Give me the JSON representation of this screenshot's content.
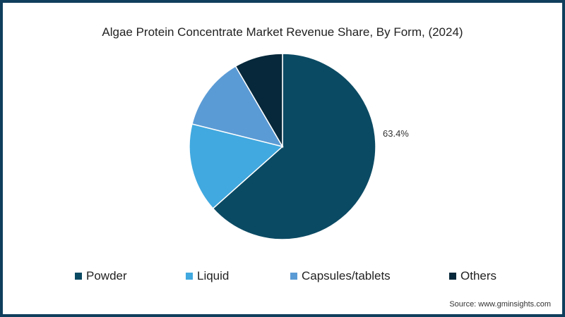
{
  "chart_data": {
    "type": "pie",
    "title": "Algae Protein Concentrate Market Revenue Share, By Form, (2024)",
    "categories": [
      "Powder",
      "Liquid",
      "Capsules/tablets",
      "Others"
    ],
    "values": [
      63.4,
      15.5,
      12.7,
      8.4
    ],
    "colors": [
      "#0b4a63",
      "#41a9df",
      "#5b9bd5",
      "#06283a"
    ],
    "data_labels": [
      {
        "category": "Powder",
        "text": "63.4%"
      }
    ],
    "legend_position": "bottom",
    "start_angle": "12 o'clock, clockwise"
  },
  "title": "Algae Protein Concentrate Market Revenue Share, By Form, (2024)",
  "label_powder": "63.4%",
  "legend": [
    {
      "label": "Powder",
      "color": "#0b4a63"
    },
    {
      "label": "Liquid",
      "color": "#41a9df"
    },
    {
      "label": "Capsules/tablets",
      "color": "#5b9bd5"
    },
    {
      "label": "Others",
      "color": "#06283a"
    }
  ],
  "source": "Source: www.gminsights.com"
}
